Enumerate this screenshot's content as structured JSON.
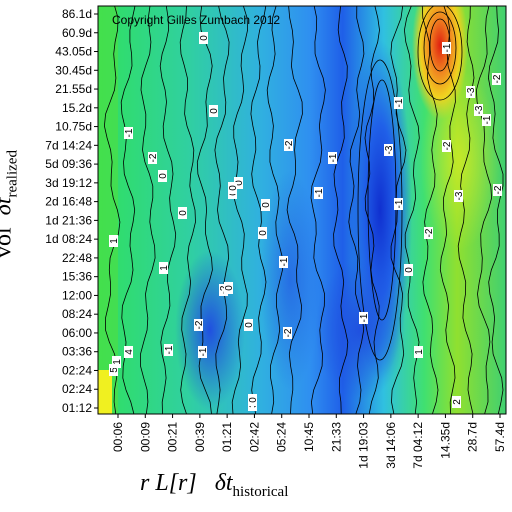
{
  "chart_data": {
    "type": "heatmap",
    "copyright": "Copyright Gilles Zumbach 2012",
    "ylabel": {
      "prefix": "vol",
      "symbol": "δt",
      "sub": "realized"
    },
    "xlabel": {
      "prefix": "r L[r]",
      "symbol": "δt",
      "sub": "historical"
    },
    "y_ticks": [
      "86.1d",
      "60.9d",
      "43.05d",
      "30.45d",
      "21.55d",
      "15.2d",
      "10.75d",
      "7d 14:24",
      "5d 09:36",
      "3d 19:12",
      "2d 16:48",
      "1d 21:36",
      "1d 08:24",
      "22:48",
      "15:36",
      "12:00",
      "08:24",
      "06:00",
      "03:36",
      "02:24",
      "02:24",
      "01:12"
    ],
    "x_ticks": [
      "00:06",
      "00:09",
      "00:21",
      "00:39",
      "01:21",
      "02:42",
      "05:24",
      "10:45",
      "21:33",
      "1d 19:03",
      "3d 14:06",
      "7d 04:12",
      "14.35d",
      "28.7d",
      "57.4d"
    ],
    "color_scale": [
      "#2040e0",
      "#30a0f0",
      "#30e0d0",
      "#30e080",
      "#60e030",
      "#c0e020",
      "#f0c020",
      "#f08020",
      "#e02010"
    ],
    "contour_labels": [
      "0",
      "0",
      "-2",
      "0",
      "0",
      "0",
      "0",
      "0",
      "0",
      "-1",
      "-2",
      "-1",
      "-1",
      "0",
      "-2",
      "-2",
      "-1",
      "-1",
      "-2",
      "-1",
      "-1",
      "-2",
      "-1",
      "-1",
      "-3",
      "-3",
      "-3",
      "-2",
      "-2",
      "-3",
      "-2",
      "-1",
      "0",
      "1",
      "2",
      "3",
      "4",
      "5",
      "1",
      "1",
      "0",
      "0",
      "1",
      "-1",
      "0"
    ]
  }
}
